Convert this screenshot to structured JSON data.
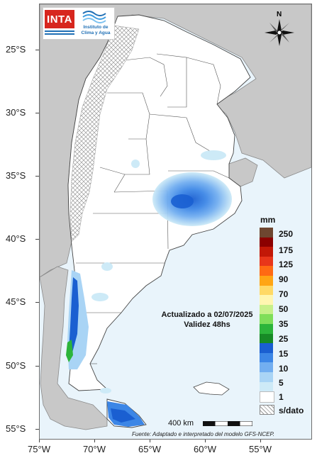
{
  "logos": {
    "inta": "INTA",
    "institute_line1": "Instituto de",
    "institute_line2": "Clima y Agua"
  },
  "compass": {
    "north_label": "N"
  },
  "latitude_labels": [
    "25°S",
    "30°S",
    "35°S",
    "40°S",
    "45°S",
    "50°S",
    "55°S"
  ],
  "longitude_labels": [
    "75°W",
    "70°W",
    "65°W",
    "60°W",
    "55°W"
  ],
  "legend": {
    "unit": "mm",
    "labels": [
      "250",
      "175",
      "125",
      "90",
      "70",
      "50",
      "35",
      "25",
      "15",
      "10",
      "5",
      "1",
      "s/dato"
    ],
    "colors": [
      "#6e4630",
      "#8b0000",
      "#c21807",
      "#e8361a",
      "#ff6a13",
      "#ffa514",
      "#ffd966",
      "#fff6b0",
      "#c7f08a",
      "#7fde5a",
      "#2cb43a",
      "#178a26",
      "#1a5fd1",
      "#3c86e6",
      "#72aef0",
      "#a9d4f5",
      "#cdeaf7",
      "#ffffff"
    ]
  },
  "annotation": {
    "updated": "Actualizado a 02/07/2025",
    "validity": "Validez 48hs"
  },
  "scale": {
    "label": "400 km"
  },
  "source": "Fuente: Adaptado e interpretado del modelo GFS-NCEP.",
  "colors": {
    "ocean": "#e9f4fb",
    "land_outside": "#c8c8c8",
    "argentina": "#ffffff",
    "no_data_hatch": "#9a9a9a"
  }
}
